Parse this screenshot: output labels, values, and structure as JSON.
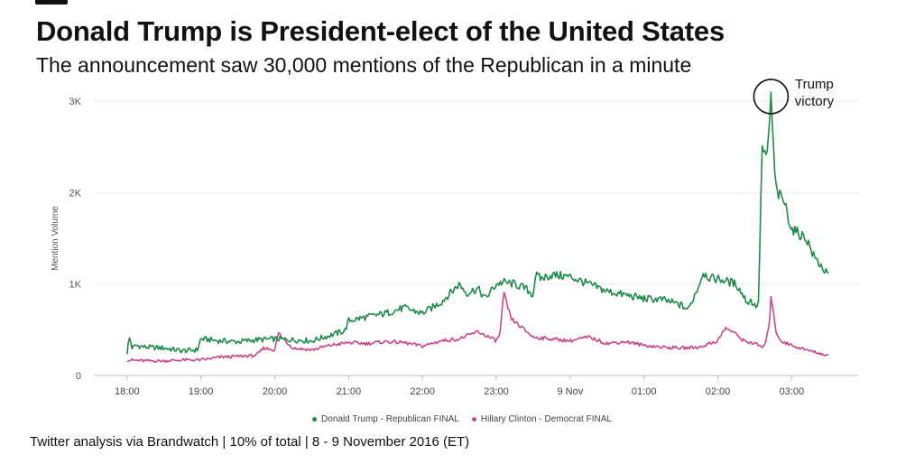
{
  "header": {
    "title": "Donald Trump is President-elect of the United States",
    "subtitle": "The announcement saw 30,000 mentions of the Republican in a minute"
  },
  "footer": {
    "source": "Twitter analysis via Brandwatch | 10% of total | 8 - 9 November 2016 (ET)"
  },
  "colors": {
    "trump": "#1e8a4a",
    "clinton": "#c8468a",
    "grid": "#ececec",
    "axis": "#bdbdbd",
    "annotation": "#111111"
  },
  "chart_data": {
    "type": "line",
    "title": "",
    "xlabel": "",
    "ylabel": "Mention Volume",
    "x_unit": "hours since 18:00, 8 Nov 2016",
    "xlim": [
      -0.45,
      9.9
    ],
    "ylim": [
      0,
      3000
    ],
    "y_ticks": [
      {
        "value": 0,
        "label": "0"
      },
      {
        "value": 1000,
        "label": "1K"
      },
      {
        "value": 2000,
        "label": "2K"
      },
      {
        "value": 3000,
        "label": "3K"
      }
    ],
    "x_ticks": [
      {
        "value": 0,
        "label": "18:00"
      },
      {
        "value": 1,
        "label": "19:00"
      },
      {
        "value": 2,
        "label": "20:00"
      },
      {
        "value": 3,
        "label": "21:00"
      },
      {
        "value": 4,
        "label": "22:00"
      },
      {
        "value": 5,
        "label": "23:00"
      },
      {
        "value": 6,
        "label": "9 Nov"
      },
      {
        "value": 7,
        "label": "01:00"
      },
      {
        "value": 8,
        "label": "02:00"
      },
      {
        "value": 9,
        "label": "03:00"
      }
    ],
    "series": [
      {
        "name": "Donald Trump - Republican FINAL",
        "color": "#1e8a4a",
        "x": [
          0,
          0.03,
          0.07,
          0.12,
          0.25,
          0.5,
          0.75,
          0.95,
          1.0,
          1.25,
          1.5,
          1.75,
          2.0,
          2.25,
          2.5,
          2.75,
          2.95,
          3.0,
          3.25,
          3.5,
          3.75,
          4.0,
          4.25,
          4.5,
          4.6,
          4.75,
          4.85,
          5.0,
          5.1,
          5.25,
          5.4,
          5.5,
          5.53,
          5.6,
          5.75,
          6.0,
          6.25,
          6.5,
          6.75,
          7.0,
          7.25,
          7.5,
          7.6,
          7.75,
          7.8,
          7.9,
          8.0,
          8.25,
          8.4,
          8.45,
          8.5,
          8.55,
          8.6,
          8.65,
          8.68,
          8.7,
          8.72,
          8.73,
          8.75,
          8.78,
          8.8,
          8.85,
          8.9,
          9.0,
          9.1,
          9.2,
          9.3,
          9.4,
          9.5
        ],
        "values": [
          250,
          420,
          300,
          330,
          310,
          300,
          270,
          280,
          400,
          380,
          370,
          390,
          400,
          390,
          380,
          440,
          490,
          600,
          640,
          680,
          740,
          680,
          800,
          1000,
          900,
          950,
          840,
          1000,
          1020,
          1000,
          950,
          880,
          1100,
          1060,
          1100,
          1080,
          1000,
          920,
          880,
          840,
          830,
          770,
          720,
          1000,
          1130,
          1060,
          1060,
          1000,
          800,
          820,
          760,
          780,
          2500,
          2350,
          2500,
          2800,
          3050,
          2900,
          2500,
          2100,
          2000,
          1950,
          1900,
          1600,
          1550,
          1500,
          1300,
          1200,
          1080
        ]
      },
      {
        "name": "Hillary Clinton - Democrat FINAL",
        "color": "#c8468a",
        "x": [
          0,
          0.25,
          0.5,
          0.75,
          1.0,
          1.25,
          1.5,
          1.75,
          1.85,
          2.0,
          2.05,
          2.1,
          2.25,
          2.5,
          2.75,
          3.0,
          3.25,
          3.5,
          3.75,
          4.0,
          4.25,
          4.5,
          4.75,
          4.9,
          5.0,
          5.05,
          5.1,
          5.2,
          5.35,
          5.5,
          5.75,
          6.0,
          6.25,
          6.5,
          6.75,
          7.0,
          7.25,
          7.5,
          7.75,
          8.0,
          8.1,
          8.2,
          8.35,
          8.5,
          8.6,
          8.65,
          8.7,
          8.72,
          8.75,
          8.78,
          8.85,
          9.0,
          9.2,
          9.4,
          9.5
        ],
        "values": [
          170,
          160,
          160,
          170,
          170,
          200,
          210,
          220,
          300,
          280,
          470,
          410,
          300,
          280,
          330,
          360,
          350,
          370,
          360,
          320,
          380,
          400,
          480,
          420,
          380,
          450,
          900,
          620,
          520,
          420,
          400,
          380,
          420,
          350,
          370,
          330,
          310,
          300,
          310,
          380,
          520,
          480,
          380,
          350,
          310,
          350,
          600,
          880,
          700,
          500,
          380,
          330,
          280,
          240,
          210
        ]
      }
    ],
    "annotations": [
      {
        "text_lines": [
          "Trump",
          "victory"
        ],
        "x": 8.72,
        "y": 3050,
        "shape": "circle"
      }
    ],
    "legend_position": "bottom-center",
    "grid": true
  }
}
